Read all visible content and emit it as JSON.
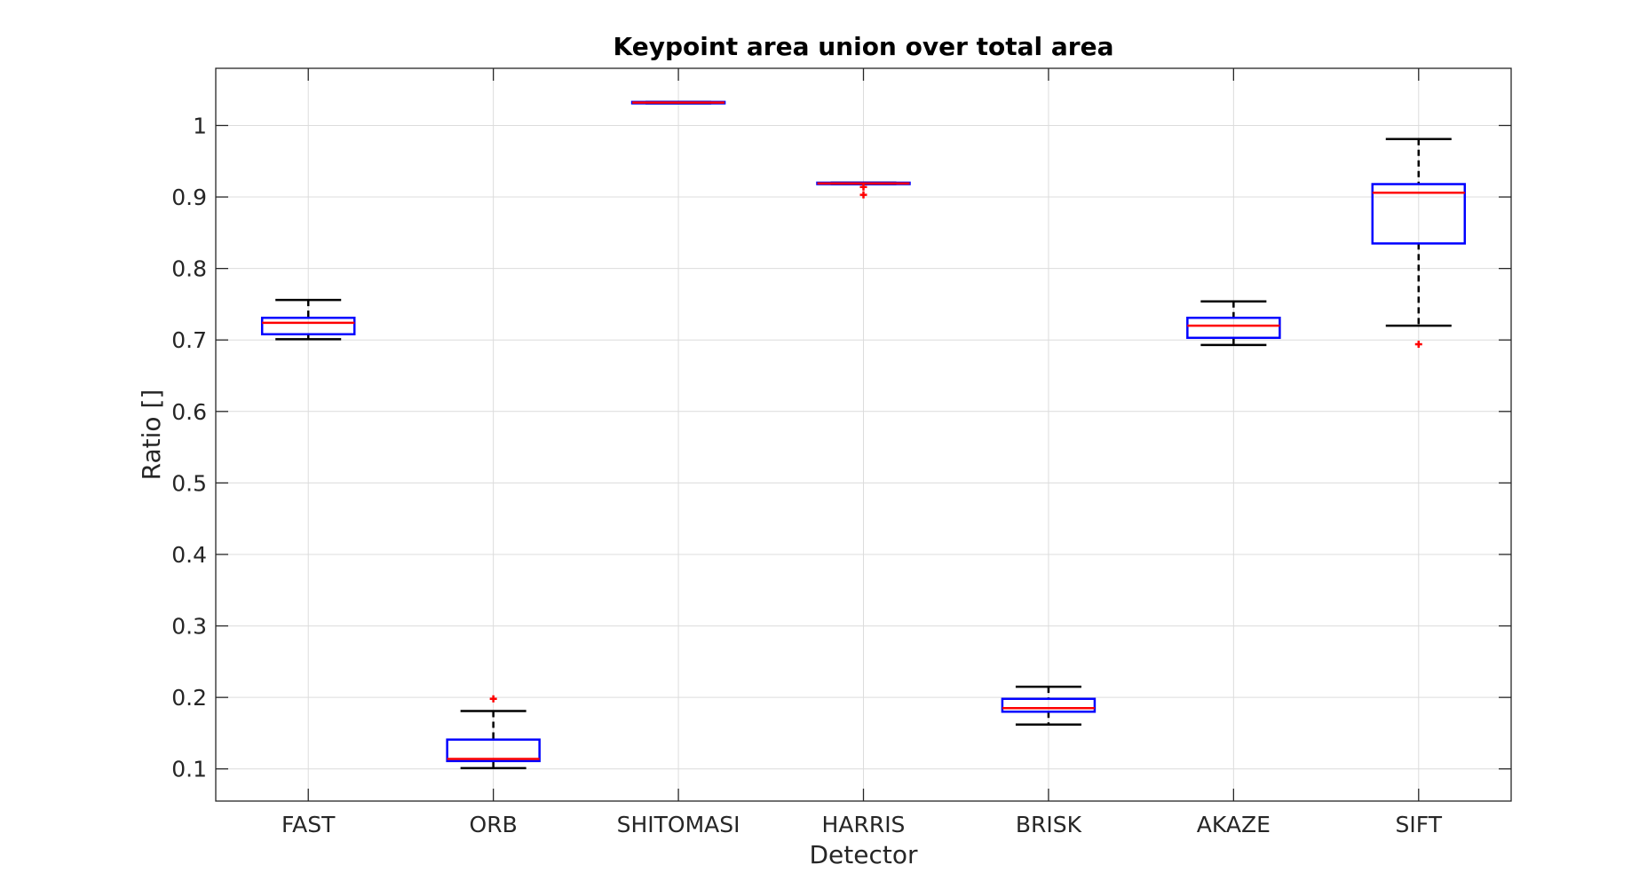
{
  "chart_data": {
    "type": "box",
    "title": "Keypoint area union over total area",
    "xlabel": "Detector",
    "ylabel": "Ratio []",
    "ylim": [
      0.055,
      1.08
    ],
    "yticks": [
      0.1,
      0.2,
      0.3,
      0.4,
      0.5,
      0.6,
      0.7,
      0.8,
      0.9,
      1
    ],
    "ytick_labels": [
      "0.1",
      "0.2",
      "0.3",
      "0.4",
      "0.5",
      "0.6",
      "0.7",
      "0.8",
      "0.9",
      "1"
    ],
    "grid": true,
    "categories": [
      "FAST",
      "ORB",
      "SHITOMASI",
      "HARRIS",
      "BRISK",
      "AKAZE",
      "SIFT"
    ],
    "boxes": [
      {
        "whisker_low": 0.701,
        "q1": 0.708,
        "median": 0.724,
        "q3": 0.731,
        "whisker_high": 0.756,
        "outliers": []
      },
      {
        "whisker_low": 0.101,
        "q1": 0.111,
        "median": 0.114,
        "q3": 0.141,
        "whisker_high": 0.181,
        "outliers": [
          0.198
        ]
      },
      {
        "whisker_low": 1.031,
        "q1": 1.031,
        "median": 1.032,
        "q3": 1.033,
        "whisker_high": 1.033,
        "outliers": []
      },
      {
        "whisker_low": 0.918,
        "q1": 0.918,
        "median": 0.919,
        "q3": 0.92,
        "whisker_high": 0.92,
        "outliers": [
          0.914,
          0.903
        ]
      },
      {
        "whisker_low": 0.162,
        "q1": 0.18,
        "median": 0.185,
        "q3": 0.198,
        "whisker_high": 0.215,
        "outliers": []
      },
      {
        "whisker_low": 0.693,
        "q1": 0.703,
        "median": 0.72,
        "q3": 0.731,
        "whisker_high": 0.754,
        "outliers": []
      },
      {
        "whisker_low": 0.72,
        "q1": 0.835,
        "median": 0.906,
        "q3": 0.918,
        "whisker_high": 0.981,
        "outliers": [
          0.694
        ]
      }
    ],
    "colors": {
      "box": "#0000ff",
      "median": "#ff0000",
      "whisker": "#000000",
      "outlier": "#ff0000"
    }
  }
}
